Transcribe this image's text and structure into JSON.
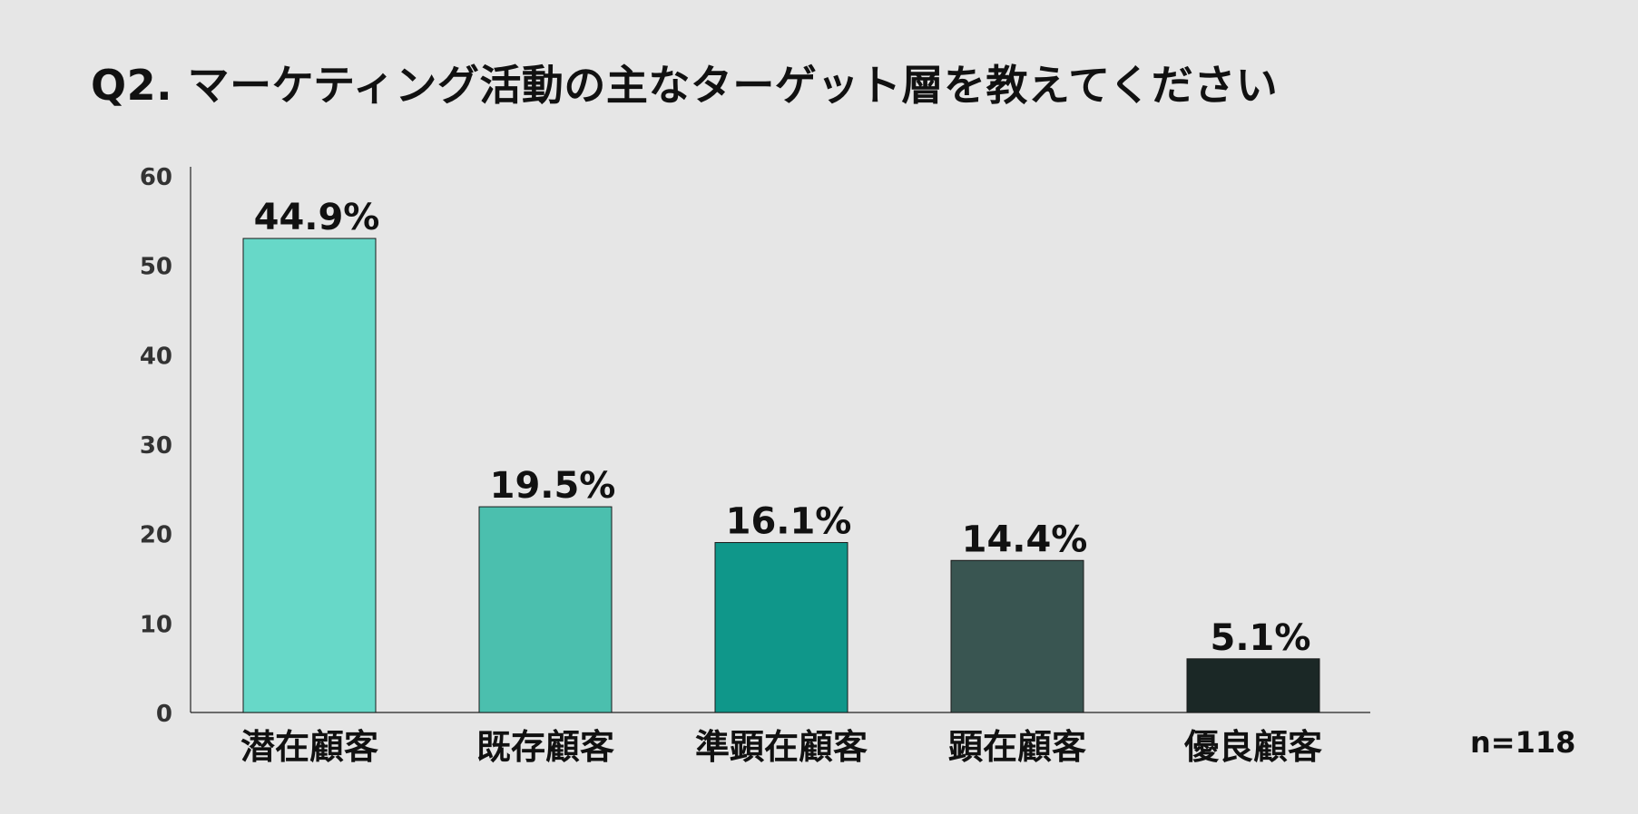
{
  "title": "Q2. マーケティング活動の主なターゲット層を教えてください",
  "sample_size_label": "n=118",
  "chart_data": {
    "type": "bar",
    "title": "Q2. マーケティング活動の主なターゲット層を教えてください",
    "xlabel": "",
    "ylabel": "",
    "categories": [
      "潜在顧客",
      "既存顧客",
      "準顕在顧客",
      "顕在顧客",
      "優良顧客"
    ],
    "values": [
      53,
      23,
      19,
      17,
      6
    ],
    "value_labels": [
      "44.9%",
      "19.5%",
      "16.1%",
      "14.4%",
      "5.1%"
    ],
    "colors": [
      "#67d8c8",
      "#4bbfae",
      "#0f978a",
      "#395551",
      "#1b2826"
    ],
    "ylim": [
      0,
      60
    ],
    "yticks": [
      0,
      10,
      20,
      30,
      40,
      50,
      60
    ],
    "grid": false,
    "legend": "none"
  }
}
